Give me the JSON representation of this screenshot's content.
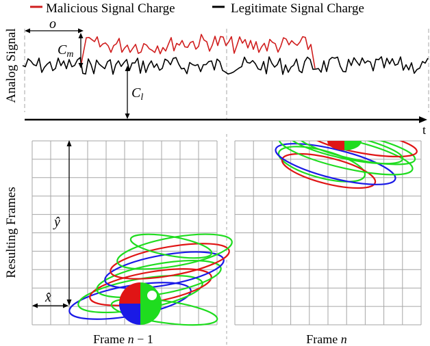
{
  "legend": {
    "malicious": {
      "label": "Malicious Signal Charge",
      "color": "#d01e1e"
    },
    "legitimate": {
      "label": "Legitimate Signal Charge",
      "color": "#000000"
    }
  },
  "top_panel": {
    "ylabel": "Analog Signal",
    "xaxis_label": "t",
    "offset_symbol": "o",
    "cm_main": "C",
    "cm_sub": "m",
    "cl_main": "C",
    "cl_sub": "l"
  },
  "bottom_panel": {
    "ylabel": "Resulting Frames",
    "xhat": "x̂",
    "yhat": "ŷ",
    "frame_prev": {
      "prefix": "Frame ",
      "var": "n",
      "suffix": " − 1"
    },
    "frame_curr": {
      "prefix": "Frame ",
      "var": "n"
    }
  },
  "colors": {
    "grid": "#a6a6a6",
    "dashed": "#b5b5b5",
    "red": "#e01515",
    "green": "#1fdc1f",
    "blue": "#1a1ae6"
  }
}
